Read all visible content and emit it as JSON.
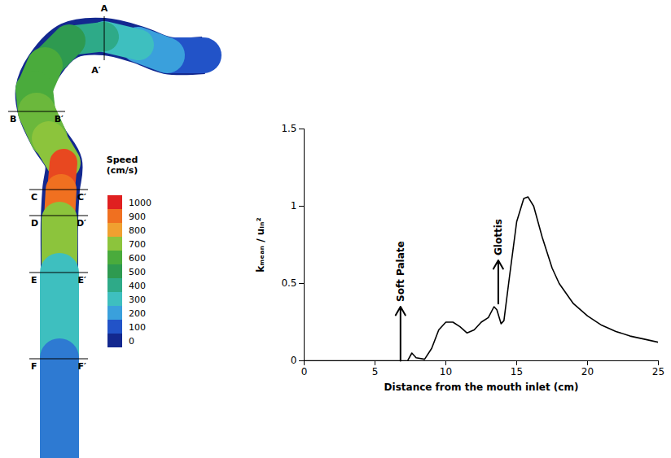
{
  "chart_data": [
    {
      "type": "contour",
      "section_labels": [
        "A",
        "A′",
        "B",
        "B′",
        "C",
        "C′",
        "D",
        "D′",
        "E",
        "E′",
        "F",
        "F′"
      ],
      "segment_speeds": [
        100,
        200,
        300,
        400,
        500,
        600,
        600,
        650,
        700,
        950,
        900,
        700,
        300,
        150
      ],
      "colorbar": {
        "title": "Speed (cm/s)",
        "range": [
          0,
          1000
        ],
        "ticks": [
          0,
          100,
          200,
          300,
          400,
          500,
          600,
          700,
          800,
          900,
          1000
        ],
        "colors": [
          "#13288f",
          "#2253c8",
          "#3aa0dc",
          "#3ebfbf",
          "#2eaa88",
          "#2e9a50",
          "#4aab3c",
          "#8cc43c",
          "#f0a030",
          "#f07020",
          "#e02020"
        ]
      }
    },
    {
      "type": "line",
      "xlabel": "Distance from the mouth inlet (cm)",
      "ylabel": "kₘₑₐₙ / uᵢₙ²",
      "x": [
        0,
        7,
        7.3,
        7.6,
        7.9,
        8.5,
        9,
        9.5,
        10,
        10.5,
        11,
        11.5,
        12,
        12.5,
        13,
        13.4,
        13.6,
        13.9,
        14.1,
        14.5,
        15,
        15.5,
        15.8,
        16.2,
        16.8,
        17.5,
        18,
        19,
        20,
        21,
        22,
        23,
        24,
        25
      ],
      "values": [
        0,
        0,
        0,
        0.05,
        0.02,
        0.01,
        0.08,
        0.2,
        0.25,
        0.25,
        0.22,
        0.18,
        0.2,
        0.25,
        0.28,
        0.35,
        0.33,
        0.24,
        0.26,
        0.55,
        0.9,
        1.05,
        1.06,
        1.0,
        0.8,
        0.6,
        0.5,
        0.37,
        0.29,
        0.23,
        0.19,
        0.16,
        0.14,
        0.12
      ],
      "color": "#000000",
      "xlim": [
        0,
        25
      ],
      "xticks": [
        0,
        5,
        10,
        15,
        20,
        25
      ],
      "ylim": [
        0,
        1.5
      ],
      "yticks": [
        0,
        0.5,
        1,
        1.5
      ],
      "annotations": [
        {
          "text": "Soft Palate",
          "x": 6.8,
          "y_start": 0,
          "y_end": 0.35
        },
        {
          "text": "Glottis",
          "x": 13.7,
          "y_start": 0.37,
          "y_end": 0.65
        }
      ]
    }
  ]
}
